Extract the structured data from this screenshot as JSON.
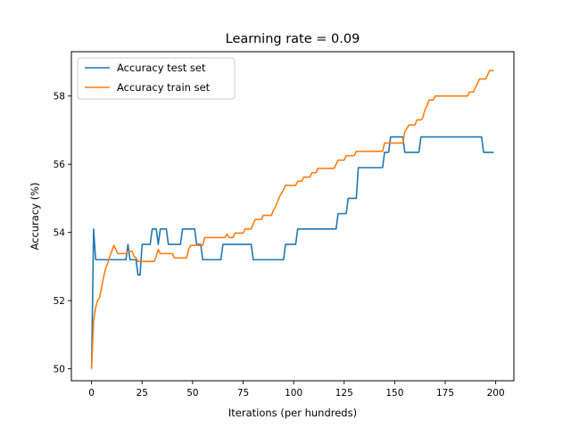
{
  "chart_data": {
    "type": "line",
    "title": "Learning rate = 0.09",
    "xlabel": "Iterations (per hundreds)",
    "ylabel": "Accuracy (%)",
    "xlim": [
      -10,
      209
    ],
    "ylim": [
      49.65,
      59.3
    ],
    "xticks": [
      0,
      25,
      50,
      75,
      100,
      125,
      150,
      175,
      200
    ],
    "yticks": [
      50,
      52,
      54,
      56,
      58
    ],
    "grid": false,
    "legend_position": "upper-left",
    "series": [
      {
        "name": "Accuracy test set",
        "color": "#1f77b4",
        "points": [
          [
            0,
            50.0
          ],
          [
            1,
            54.1
          ],
          [
            2,
            53.2
          ],
          [
            17,
            53.2
          ],
          [
            18,
            53.65
          ],
          [
            19,
            53.2
          ],
          [
            22,
            53.2
          ],
          [
            23,
            52.75
          ],
          [
            24,
            52.75
          ],
          [
            25,
            53.65
          ],
          [
            29,
            53.65
          ],
          [
            30,
            54.1
          ],
          [
            32,
            54.1
          ],
          [
            33,
            53.65
          ],
          [
            34,
            54.1
          ],
          [
            37,
            54.1
          ],
          [
            38,
            53.65
          ],
          [
            44,
            53.65
          ],
          [
            45,
            54.1
          ],
          [
            51,
            54.1
          ],
          [
            52,
            53.65
          ],
          [
            54,
            53.65
          ],
          [
            55,
            53.2
          ],
          [
            64,
            53.2
          ],
          [
            65,
            53.65
          ],
          [
            79,
            53.65
          ],
          [
            80,
            53.2
          ],
          [
            95,
            53.2
          ],
          [
            96,
            53.65
          ],
          [
            101,
            53.65
          ],
          [
            102,
            54.1
          ],
          [
            121,
            54.1
          ],
          [
            122,
            54.55
          ],
          [
            126,
            54.55
          ],
          [
            127,
            55.0
          ],
          [
            131,
            55.0
          ],
          [
            132,
            55.9
          ],
          [
            144,
            55.9
          ],
          [
            145,
            56.35
          ],
          [
            147,
            56.35
          ],
          [
            148,
            56.8
          ],
          [
            154,
            56.8
          ],
          [
            155,
            56.35
          ],
          [
            162,
            56.35
          ],
          [
            163,
            56.8
          ],
          [
            193,
            56.8
          ],
          [
            194,
            56.35
          ],
          [
            199,
            56.35
          ]
        ]
      },
      {
        "name": "Accuracy train set",
        "color": "#ff7f0e",
        "points": [
          [
            0,
            50.0
          ],
          [
            1,
            51.4
          ],
          [
            2,
            51.8
          ],
          [
            3,
            52.0
          ],
          [
            4,
            52.1
          ],
          [
            5,
            52.4
          ],
          [
            6,
            52.7
          ],
          [
            7,
            52.95
          ],
          [
            8,
            53.1
          ],
          [
            9,
            53.3
          ],
          [
            10,
            53.45
          ],
          [
            11,
            53.62
          ],
          [
            12,
            53.5
          ],
          [
            13,
            53.38
          ],
          [
            17,
            53.38
          ],
          [
            18,
            53.45
          ],
          [
            20,
            53.45
          ],
          [
            21,
            53.3
          ],
          [
            22,
            53.25
          ],
          [
            23,
            53.15
          ],
          [
            31,
            53.15
          ],
          [
            32,
            53.3
          ],
          [
            33,
            53.5
          ],
          [
            34,
            53.38
          ],
          [
            40,
            53.38
          ],
          [
            41,
            53.25
          ],
          [
            47,
            53.25
          ],
          [
            48,
            53.5
          ],
          [
            49,
            53.62
          ],
          [
            55,
            53.62
          ],
          [
            56,
            53.85
          ],
          [
            66,
            53.85
          ],
          [
            67,
            53.95
          ],
          [
            68,
            53.85
          ],
          [
            70,
            53.85
          ],
          [
            71,
            53.98
          ],
          [
            75,
            53.98
          ],
          [
            76,
            54.1
          ],
          [
            79,
            54.1
          ],
          [
            80,
            54.25
          ],
          [
            81,
            54.38
          ],
          [
            84,
            54.38
          ],
          [
            85,
            54.5
          ],
          [
            89,
            54.5
          ],
          [
            90,
            54.65
          ],
          [
            91,
            54.75
          ],
          [
            92,
            54.9
          ],
          [
            93,
            55.05
          ],
          [
            94,
            55.15
          ],
          [
            95,
            55.25
          ],
          [
            96,
            55.38
          ],
          [
            101,
            55.38
          ],
          [
            102,
            55.5
          ],
          [
            104,
            55.5
          ],
          [
            105,
            55.62
          ],
          [
            108,
            55.62
          ],
          [
            109,
            55.75
          ],
          [
            111,
            55.75
          ],
          [
            112,
            55.88
          ],
          [
            120,
            55.88
          ],
          [
            121,
            56.0
          ],
          [
            122,
            56.12
          ],
          [
            125,
            56.12
          ],
          [
            126,
            56.25
          ],
          [
            130,
            56.25
          ],
          [
            131,
            56.38
          ],
          [
            144,
            56.38
          ],
          [
            145,
            56.62
          ],
          [
            154,
            56.62
          ],
          [
            155,
            56.95
          ],
          [
            156,
            57.05
          ],
          [
            157,
            57.15
          ],
          [
            160,
            57.15
          ],
          [
            161,
            57.3
          ],
          [
            163,
            57.3
          ],
          [
            164,
            57.38
          ],
          [
            165,
            57.6
          ],
          [
            166,
            57.72
          ],
          [
            167,
            57.88
          ],
          [
            169,
            57.88
          ],
          [
            170,
            58.0
          ],
          [
            186,
            58.0
          ],
          [
            187,
            58.12
          ],
          [
            189,
            58.12
          ],
          [
            190,
            58.25
          ],
          [
            191,
            58.38
          ],
          [
            192,
            58.5
          ],
          [
            195,
            58.5
          ],
          [
            196,
            58.62
          ],
          [
            197,
            58.75
          ],
          [
            199,
            58.75
          ]
        ]
      }
    ]
  }
}
